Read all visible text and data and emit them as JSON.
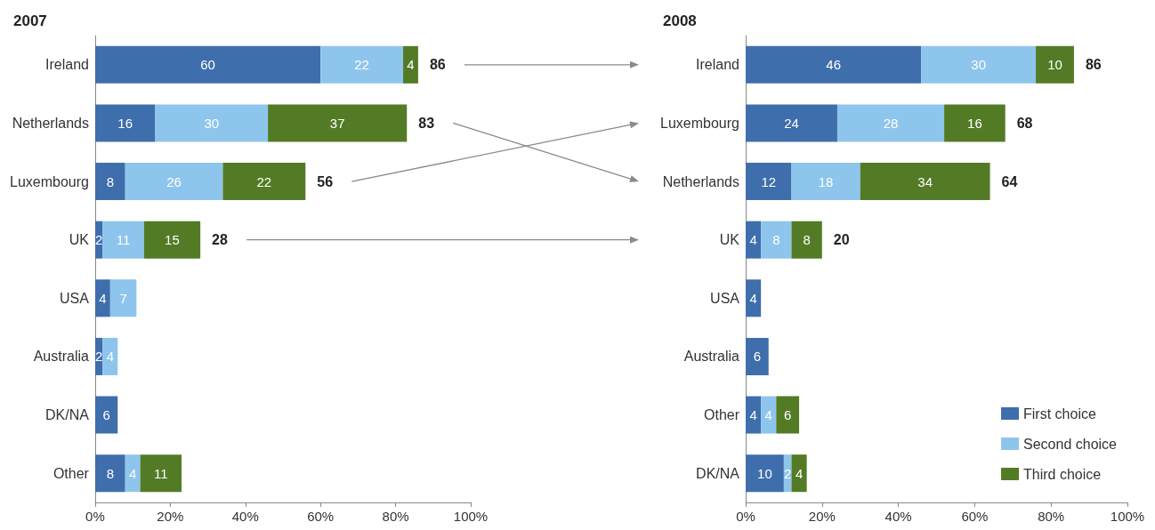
{
  "chart_data": [
    {
      "type": "bar",
      "title": "2007",
      "orientation": "horizontal",
      "stacked": true,
      "categories": [
        "Ireland",
        "Netherlands",
        "Luxembourg",
        "UK",
        "USA",
        "Australia",
        "DK/NA",
        "Other"
      ],
      "series": [
        {
          "color": "#3f6eac",
          "values": [
            60,
            16,
            8,
            2,
            4,
            2,
            6,
            8
          ]
        },
        {
          "color": "#8ec5ec",
          "values": [
            22,
            30,
            26,
            11,
            7,
            4,
            null,
            4
          ]
        },
        {
          "color": "#537b26",
          "values": [
            4,
            37,
            22,
            15,
            null,
            null,
            null,
            11
          ]
        }
      ],
      "totals": [
        "86",
        "83",
        "56",
        "28",
        null,
        null,
        null,
        null
      ],
      "data_labels": true,
      "xlim": [
        0,
        100
      ],
      "xticks": [
        {
          "value": 0,
          "label": "0%"
        },
        {
          "value": 20,
          "label": "20%"
        },
        {
          "value": 40,
          "label": "40%"
        },
        {
          "value": 60,
          "label": "60%"
        },
        {
          "value": 80,
          "label": "80%"
        },
        {
          "value": 100,
          "label": "100%"
        }
      ],
      "grid": false,
      "legend": false
    },
    {
      "type": "bar",
      "title": "2008",
      "orientation": "horizontal",
      "stacked": true,
      "categories": [
        "Ireland",
        "Luxembourg",
        "Netherlands",
        "UK",
        "USA",
        "Australia",
        "Other",
        "DK/NA"
      ],
      "series": [
        {
          "name": "First choice",
          "color": "#3f6eac",
          "values": [
            46,
            24,
            12,
            4,
            4,
            6,
            4,
            10
          ]
        },
        {
          "name": "Second choice",
          "color": "#8ec5ec",
          "values": [
            30,
            28,
            18,
            8,
            null,
            null,
            4,
            2
          ]
        },
        {
          "name": "Third choice",
          "color": "#537b26",
          "values": [
            10,
            16,
            34,
            8,
            null,
            null,
            6,
            4
          ]
        }
      ],
      "totals": [
        "86",
        "68",
        "64",
        "20",
        null,
        null,
        null,
        null
      ],
      "data_labels": true,
      "xlim": [
        0,
        100
      ],
      "xticks": [
        {
          "value": 0,
          "label": "0%"
        },
        {
          "value": 20,
          "label": "20%"
        },
        {
          "value": 40,
          "label": "40%"
        },
        {
          "value": 60,
          "label": "60%"
        },
        {
          "value": 80,
          "label": "80%"
        },
        {
          "value": 100,
          "label": "100%"
        }
      ],
      "grid": false,
      "legend": "bottom right"
    }
  ]
}
